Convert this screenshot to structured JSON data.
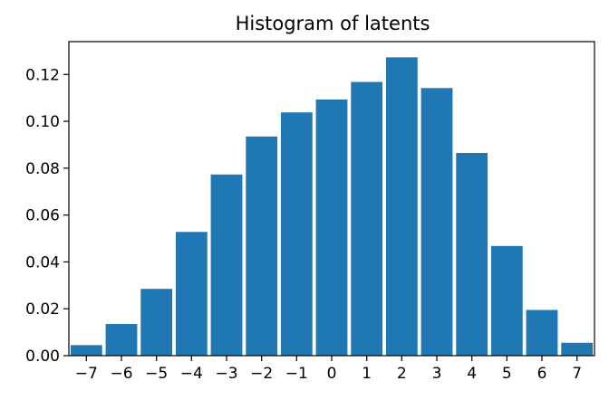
{
  "chart_data": {
    "type": "bar",
    "title": "Histogram of latents",
    "xlabel": "",
    "ylabel": "",
    "categories": [
      "−7",
      "−6",
      "−5",
      "−4",
      "−3",
      "−2",
      "−1",
      "0",
      "1",
      "2",
      "3",
      "4",
      "5",
      "6",
      "7"
    ],
    "x": [
      -7,
      -6,
      -5,
      -4,
      -3,
      -2,
      -1,
      0,
      1,
      2,
      3,
      4,
      5,
      6,
      7
    ],
    "values": [
      0.0045,
      0.0135,
      0.0285,
      0.0528,
      0.0773,
      0.0935,
      0.1038,
      0.1093,
      0.1168,
      0.1273,
      0.1142,
      0.0865,
      0.0468,
      0.0195,
      0.0055
    ],
    "xlim": [
      -7.5,
      7.5
    ],
    "ylim": [
      0,
      0.134
    ],
    "y_ticks": [
      0.0,
      0.02,
      0.04,
      0.06,
      0.08,
      0.1,
      0.12
    ],
    "y_tick_labels": [
      "0.00",
      "0.02",
      "0.04",
      "0.06",
      "0.08",
      "0.10",
      "0.12"
    ],
    "grid": false,
    "bar_color": "#1f77b4",
    "bar_edge_color": "#ffffff"
  }
}
